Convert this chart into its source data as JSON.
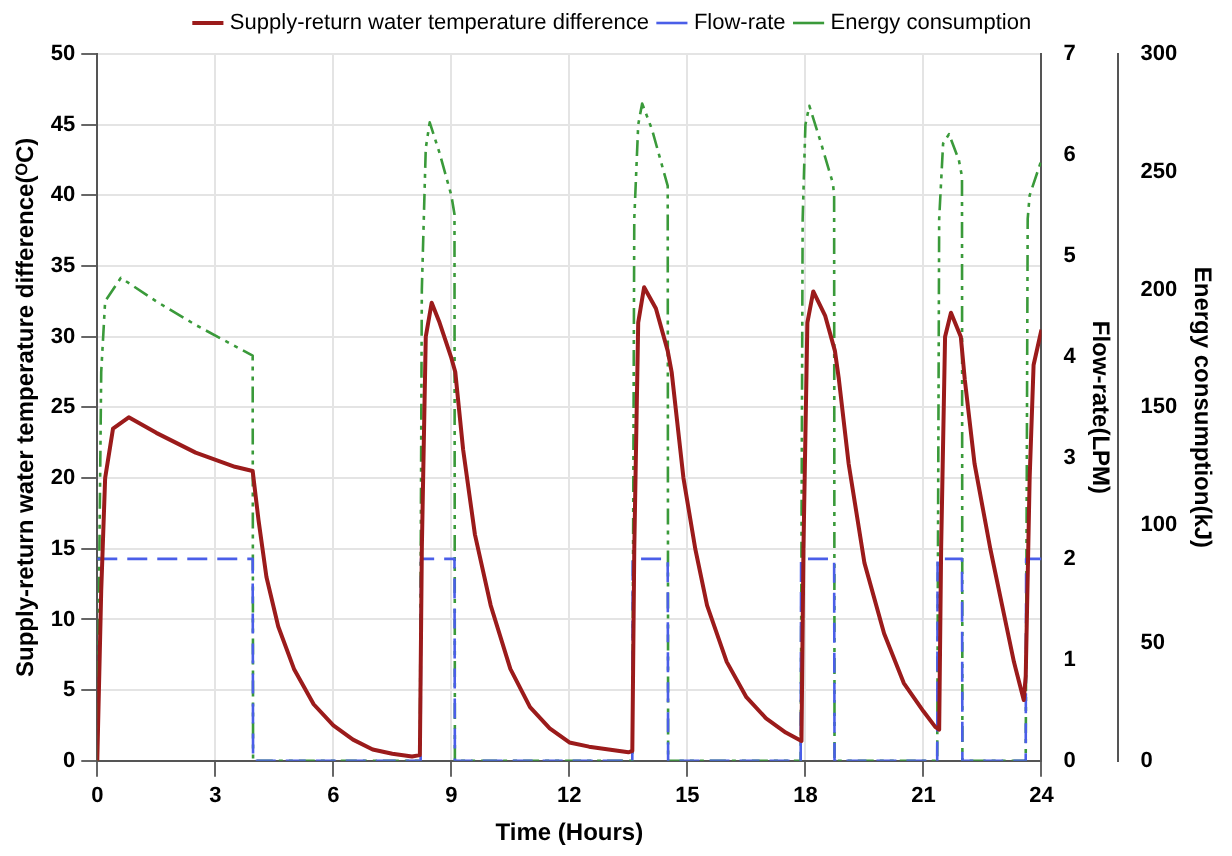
{
  "chart_data": {
    "type": "line",
    "xlabel": "Time (Hours)",
    "ylabel": "Supply-return water temperature difference(ᴼC)",
    "y2label": "Flow-rate(LPM)",
    "y3label": "Energy consumption(kJ)",
    "xlim": [
      0,
      24
    ],
    "xticks": [
      0,
      3,
      6,
      9,
      12,
      15,
      18,
      21,
      24
    ],
    "ylim": [
      0,
      50
    ],
    "yticks": [
      0,
      5,
      10,
      15,
      20,
      25,
      30,
      35,
      40,
      45,
      50
    ],
    "y2lim": [
      0,
      7
    ],
    "y2ticks": [
      0,
      1,
      2,
      3,
      4,
      5,
      6,
      7
    ],
    "y3lim": [
      0,
      300
    ],
    "y3ticks": [
      0,
      50,
      100,
      150,
      200,
      250,
      300
    ],
    "grid": true,
    "legend": "top",
    "series": [
      {
        "name": "Supply-return water temperature difference",
        "color": "#9b1b1b",
        "line_style": "solid",
        "x": [
          0,
          0.1,
          0.2,
          0.4,
          0.8,
          1.5,
          2.5,
          3.5,
          3.95,
          4.1,
          4.3,
          4.6,
          5,
          5.5,
          6,
          6.5,
          7,
          7.5,
          8,
          8.2,
          8.25,
          8.35,
          8.5,
          8.7,
          9,
          9.1,
          9.3,
          9.6,
          10,
          10.5,
          11,
          11.5,
          12,
          12.5,
          13,
          13.5,
          13.6,
          13.65,
          13.75,
          13.9,
          14.2,
          14.5,
          14.6,
          14.9,
          15.2,
          15.5,
          16,
          16.5,
          17,
          17.5,
          17.9,
          17.95,
          18.05,
          18.2,
          18.5,
          18.75,
          18.85,
          19.1,
          19.5,
          20,
          20.5,
          21,
          21.3,
          21.4,
          21.45,
          21.55,
          21.7,
          21.95,
          22.05,
          22.3,
          22.7,
          23,
          23.3,
          23.55,
          23.6,
          23.7,
          23.8,
          24
        ],
        "values": [
          0,
          12,
          20,
          23.5,
          24.3,
          23.2,
          21.8,
          20.8,
          20.5,
          17,
          13,
          9.5,
          6.5,
          4,
          2.5,
          1.5,
          0.8,
          0.5,
          0.3,
          0.4,
          15,
          30,
          32.4,
          31,
          28.5,
          27.5,
          22,
          16,
          11,
          6.5,
          3.8,
          2.3,
          1.3,
          1,
          0.8,
          0.6,
          0.7,
          15,
          31,
          33.5,
          32,
          29,
          27.5,
          20,
          15,
          11,
          7,
          4.5,
          3,
          2,
          1.4,
          15,
          31,
          33.2,
          31.5,
          29,
          27,
          21,
          14,
          9,
          5.5,
          3.5,
          2.4,
          2.2,
          15,
          30,
          31.7,
          30,
          27,
          21,
          15,
          11,
          7,
          4.3,
          6,
          20,
          28,
          30.5
        ]
      },
      {
        "name": "Flow-rate",
        "color": "#4a5ee8",
        "line_style": "dashed",
        "axis": "y2",
        "x": [
          0,
          3.95,
          3.96,
          8.22,
          8.23,
          9.08,
          9.09,
          13.6,
          13.61,
          14.5,
          14.51,
          17.88,
          17.89,
          18.73,
          18.74,
          21.35,
          21.36,
          21.98,
          21.99,
          23.6,
          23.61,
          24
        ],
        "values": [
          2,
          2,
          0,
          0,
          2,
          2,
          0,
          0,
          2,
          2,
          0,
          0,
          2,
          2,
          0,
          0,
          2,
          2,
          0,
          0,
          2,
          2
        ]
      },
      {
        "name": "Energy consumption",
        "color": "#3a9a3a",
        "line_style": "dashdot",
        "axis": "y3",
        "x": [
          0,
          0.1,
          0.2,
          0.6,
          1.5,
          2.5,
          3.5,
          3.95,
          3.96,
          8.2,
          8.25,
          8.35,
          8.45,
          8.7,
          9,
          9.08,
          9.09,
          13.6,
          13.65,
          13.75,
          13.85,
          14.1,
          14.4,
          14.5,
          14.51,
          17.88,
          17.93,
          18,
          18.1,
          18.4,
          18.7,
          18.73,
          18.74,
          21.35,
          21.4,
          21.5,
          21.65,
          21.9,
          21.98,
          21.99,
          23.6,
          23.65,
          23.7,
          24
        ],
        "values": [
          0,
          165,
          195,
          205,
          195,
          185,
          176,
          172,
          0,
          0,
          200,
          260,
          271,
          258,
          240,
          232,
          0,
          0,
          230,
          270,
          279,
          268,
          250,
          244,
          0,
          0,
          230,
          270,
          278,
          262,
          245,
          240,
          0,
          0,
          230,
          262,
          266,
          255,
          248,
          0,
          0,
          230,
          240,
          255
        ]
      }
    ]
  }
}
